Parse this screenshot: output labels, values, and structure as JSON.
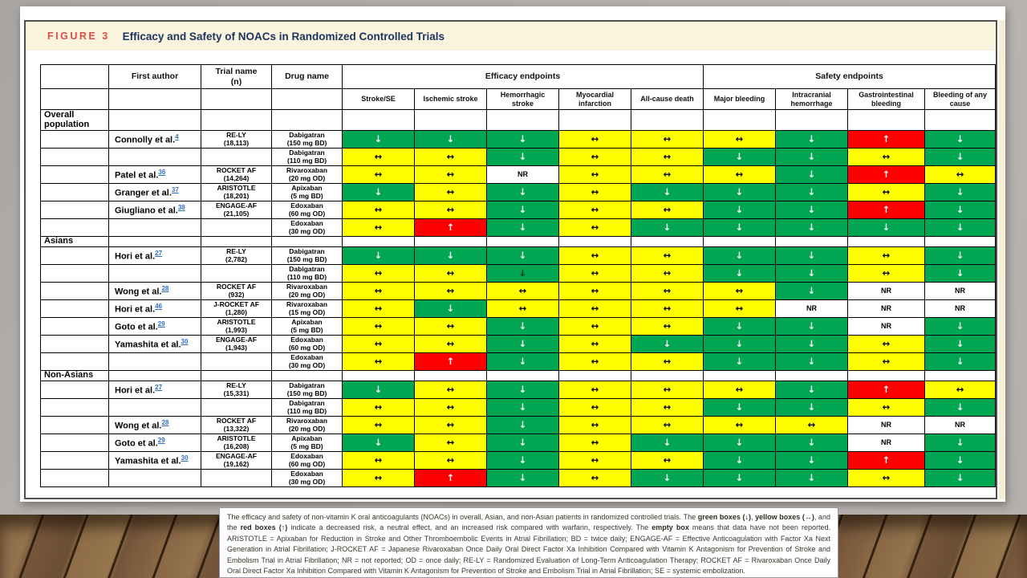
{
  "figure": {
    "label": "FIGURE 3",
    "title": "Efficacy and Safety of NOACs in Randomized Controlled Trials"
  },
  "table": {
    "headers": {
      "first_author": "First author",
      "trial_name_line1": "Trial name",
      "trial_name_line2": "(n)",
      "drug_name": "Drug name",
      "efficacy_group": "Efficacy endpoints",
      "safety_group": "Safety endpoints"
    },
    "efficacy_columns": [
      "Stroke/SE",
      "Ischemic stroke",
      "Hemorrhagic stroke",
      "Myocardial infarction",
      "All-cause death"
    ],
    "safety_columns": [
      "Major bleeding",
      "Intracranial hemorrhage",
      "Gastrointestinal bleeding",
      "Bleeding of any cause"
    ],
    "legend_colors": {
      "decreased_risk": "#00a651",
      "neutral_effect": "#ffff00",
      "increased_risk": "#ff0000",
      "not_reported": "#ffffff"
    },
    "cell_glyphs": {
      "down": "↓",
      "neutral": "↔",
      "up": "↑",
      "nr": "NR"
    },
    "sections": [
      {
        "label": "Overall population",
        "rows": [
          {
            "author": "Connolly et al.",
            "ref": "4",
            "trial": "RE-LY",
            "n": "(18,113)",
            "drug": "Dabigatran",
            "dose": "(150 mg BD)",
            "cells": [
              "down",
              "down",
              "down",
              "neutral",
              "neutral",
              "neutral",
              "down",
              "up",
              "down"
            ]
          },
          {
            "author": "",
            "ref": "",
            "trial": "",
            "n": "",
            "drug": "Dabigatran",
            "dose": "(110 mg BD)",
            "cells": [
              "neutral",
              "neutral",
              "down",
              "neutral",
              "neutral",
              "down",
              "down",
              "neutral",
              "down"
            ]
          },
          {
            "author": "Patel et al.",
            "ref": "36",
            "trial": "ROCKET AF",
            "n": "(14,264)",
            "drug": "Rivaroxaban",
            "dose": "(20 mg OD)",
            "cells": [
              "neutral",
              "neutral",
              "nr",
              "neutral",
              "neutral",
              "neutral",
              "down",
              "up",
              "neutral"
            ]
          },
          {
            "author": "Granger et al.",
            "ref": "37",
            "trial": "ARISTOTLE",
            "n": "(18,201)",
            "drug": "Apixaban",
            "dose": "(5 mg BD)",
            "cells": [
              "down",
              "neutral",
              "down",
              "neutral",
              "down",
              "down",
              "down",
              "neutral",
              "down"
            ]
          },
          {
            "author": "Giugliano et al.",
            "ref": "38",
            "trial": "ENGAGE-AF",
            "n": "(21,105)",
            "drug": "Edoxaban",
            "dose": "(60 mg OD)",
            "cells": [
              "neutral",
              "neutral",
              "down",
              "neutral",
              "neutral",
              "down",
              "down",
              "up",
              "down"
            ]
          },
          {
            "author": "",
            "ref": "",
            "trial": "",
            "n": "",
            "drug": "Edoxaban",
            "dose": "(30 mg OD)",
            "cells": [
              "neutral",
              "up",
              "down",
              "neutral",
              "down",
              "down",
              "down",
              "down",
              "down"
            ]
          }
        ]
      },
      {
        "label": "Asians",
        "rows": [
          {
            "author": "Hori et al.",
            "ref": "27",
            "trial": "RE-LY",
            "n": "(2,782)",
            "drug": "Dabigatran",
            "dose": "(150 mg BD)",
            "cells": [
              "down",
              "down",
              "down",
              "neutral",
              "neutral",
              "down",
              "down",
              "neutral",
              "down"
            ]
          },
          {
            "author": "",
            "ref": "",
            "trial": "",
            "n": "",
            "drug": "Dabigatran",
            "dose": "(110 mg BD)",
            "cells": [
              "neutral",
              "neutral",
              "down-black",
              "neutral",
              "neutral",
              "down",
              "down",
              "neutral",
              "down"
            ]
          },
          {
            "author": "Wong et al.",
            "ref": "28",
            "trial": "ROCKET AF",
            "n": "(932)",
            "drug": "Rivaroxaban",
            "dose": "(20 mg OD)",
            "cells": [
              "neutral",
              "neutral",
              "neutral",
              "neutral",
              "neutral",
              "neutral",
              "down",
              "nr",
              "nr"
            ]
          },
          {
            "author": "Hori et al.",
            "ref": "46",
            "trial": "J-ROCKET AF",
            "n": "(1,280)",
            "drug": "Rivaroxaban",
            "dose": "(15 mg OD)",
            "cells": [
              "neutral",
              "down",
              "neutral",
              "neutral",
              "neutral",
              "neutral",
              "nr",
              "nr",
              "nr"
            ]
          },
          {
            "author": "Goto et al.",
            "ref": "29",
            "trial": "ARISTOTLE",
            "n": "(1,993)",
            "drug": "Apixaban",
            "dose": "(5 mg BD)",
            "cells": [
              "neutral",
              "neutral",
              "down",
              "neutral",
              "neutral",
              "down",
              "down",
              "nr",
              "down"
            ]
          },
          {
            "author": "Yamashita et al.",
            "ref": "30",
            "trial": "ENGAGE-AF",
            "n": "(1,943)",
            "drug": "Edoxaban",
            "dose": "(60 mg OD)",
            "cells": [
              "neutral",
              "neutral",
              "down",
              "neutral",
              "down",
              "down",
              "down",
              "neutral",
              "down"
            ]
          },
          {
            "author": "",
            "ref": "",
            "trial": "",
            "n": "",
            "drug": "Edoxaban",
            "dose": "(30 mg OD)",
            "cells": [
              "neutral",
              "up",
              "down",
              "neutral",
              "neutral",
              "down",
              "down",
              "neutral",
              "down"
            ]
          }
        ]
      },
      {
        "label": "Non-Asians",
        "rows": [
          {
            "author": "Hori et al.",
            "ref": "27",
            "trial": "RE-LY",
            "n": "(15,331)",
            "drug": "Dabigatran",
            "dose": "(150 mg BD)",
            "cells": [
              "down",
              "neutral",
              "down",
              "neutral",
              "neutral",
              "neutral",
              "down",
              "up",
              "neutral"
            ]
          },
          {
            "author": "",
            "ref": "",
            "trial": "",
            "n": "",
            "drug": "Dabigatran",
            "dose": "(110 mg BD)",
            "cells": [
              "neutral",
              "neutral",
              "down",
              "neutral",
              "neutral",
              "down",
              "down",
              "neutral",
              "down"
            ]
          },
          {
            "author": "Wong et al.",
            "ref": "28",
            "trial": "ROCKET AF",
            "n": "(13,322)",
            "drug": "Rivaroxaban",
            "dose": "(20 mg OD)",
            "cells": [
              "neutral",
              "neutral",
              "down",
              "neutral",
              "neutral",
              "neutral",
              "neutral",
              "nr",
              "nr"
            ]
          },
          {
            "author": "Goto et al.",
            "ref": "29",
            "trial": "ARISTOTLE",
            "n": "(16,208)",
            "drug": "Apixaban",
            "dose": "(5 mg BD)",
            "cells": [
              "down",
              "neutral",
              "down",
              "neutral",
              "down",
              "down",
              "down",
              "nr",
              "down"
            ]
          },
          {
            "author": "Yamashita et al.",
            "ref": "30",
            "trial": "ENGAGE-AF",
            "n": "(19,162)",
            "drug": "Edoxaban",
            "dose": "(60 mg OD)",
            "cells": [
              "neutral",
              "neutral",
              "down",
              "neutral",
              "neutral",
              "down",
              "down",
              "up",
              "down"
            ]
          },
          {
            "author": "",
            "ref": "",
            "trial": "",
            "n": "",
            "drug": "Edoxaban",
            "dose": "(30 mg OD)",
            "cells": [
              "neutral",
              "up",
              "down",
              "neutral",
              "down",
              "down",
              "down",
              "neutral",
              "down"
            ]
          }
        ]
      }
    ]
  },
  "caption": {
    "segments": [
      {
        "text": "The efficacy and safety of non-vitamin K oral anticoagulants (NOACs) in overall, Asian, and non-Asian patients in randomized controlled trials. The ",
        "bold": false
      },
      {
        "text": "green boxes (↓)",
        "bold": true
      },
      {
        "text": ", ",
        "bold": false
      },
      {
        "text": "yellow boxes (↔)",
        "bold": true
      },
      {
        "text": ", and the ",
        "bold": false
      },
      {
        "text": "red boxes (↑)",
        "bold": true
      },
      {
        "text": " indicate a decreased risk, a neutral effect, and an increased risk compared with warfarin, respectively. The ",
        "bold": false
      },
      {
        "text": "empty box",
        "bold": true
      },
      {
        "text": " means that data have not been reported. ARISTOTLE = Apixaban for Reduction in Stroke and Other Thromboembolic Events in Atrial Fibrillation; BD = twice daily; ENGAGE-AF = Effective Anticoagulation with Factor Xa Next Generation in Atrial Fibrillation; J-ROCKET AF = Japanese Rivaroxaban Once Daily Oral Direct Factor Xa Inhibition Compared with Vitamin K Antagonism for Prevention of Stroke and Embolism Trial in Atrial Fibrillation; NR = not reported; OD = once daily; RE-LY = Randomized Evaluation of Long-Term Anticoagulation Therapy; ROCKET AF = Rivaroxaban Once Daily Oral Direct Factor Xa Inhibition Compared with Vitamin K Antagonism for Prevention of Stroke and Embolism Trial in Atrial Fibrillation; SE = systemic embolization.",
        "bold": false
      }
    ]
  }
}
